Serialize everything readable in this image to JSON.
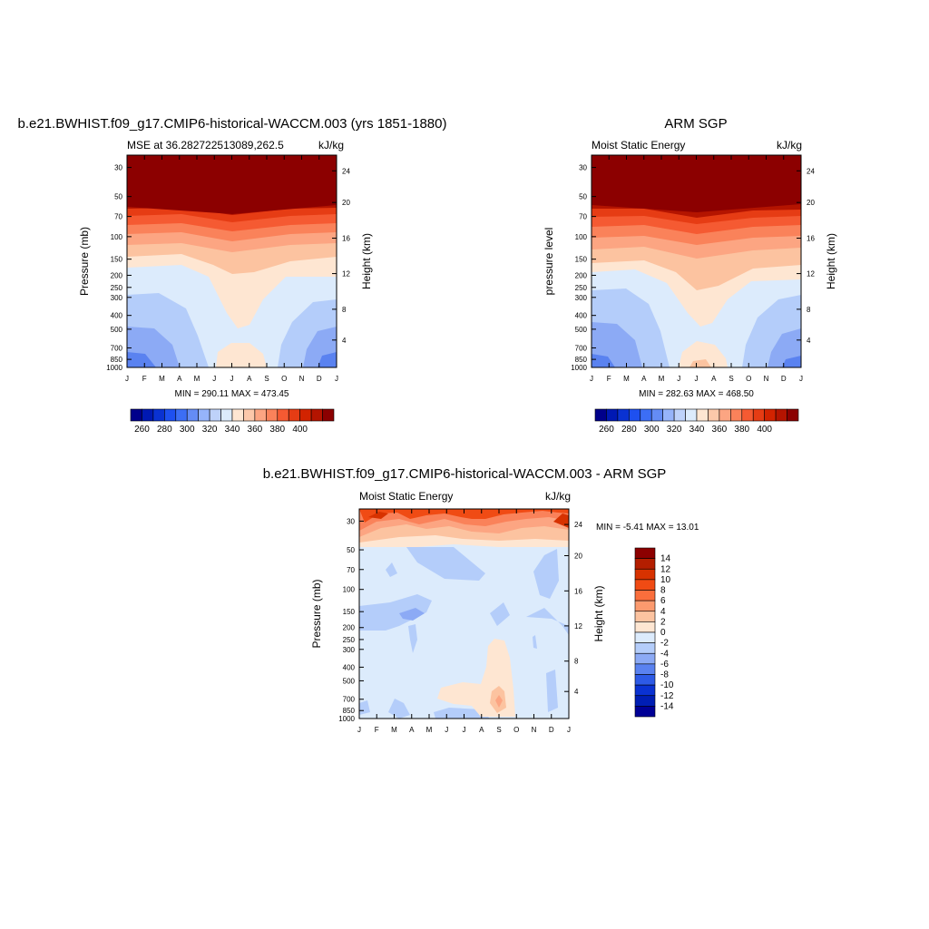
{
  "chart_data": [
    {
      "type": "contour",
      "title": "b.e21.BWHIST.f09_g17.CMIP6-historical-WACCM.003 (yrs 1851-1880)",
      "subtitle_left": "MSE at 36.282722513089,262.5",
      "subtitle_right": "kJ/kg",
      "ylabel_left": "Pressure (mb)",
      "ylabel_right": "Height (km)",
      "months": [
        "J",
        "F",
        "M",
        "A",
        "M",
        "J",
        "J",
        "A",
        "S",
        "O",
        "N",
        "D",
        "J"
      ],
      "pressure_ticks": [
        "30",
        "50",
        "70",
        "100",
        "150",
        "200",
        "250",
        "300",
        "400",
        "500",
        "700",
        "850",
        "1000"
      ],
      "height_ticks": [
        "24",
        "20",
        "16",
        "12",
        "8",
        "4"
      ],
      "stats": "MIN = 290.11 MAX = 473.45",
      "colorbar_labels": [
        "260",
        "280",
        "300",
        "320",
        "340",
        "360",
        "380",
        "400"
      ],
      "colorbar_colors": [
        "#00008b",
        "#0019b3",
        "#0a32d2",
        "#1e50f0",
        "#3c6ef5",
        "#648cf5",
        "#96b4fa",
        "#bed2fa",
        "#dcebfc",
        "#fee6d2",
        "#fcc8aa",
        "#fca582",
        "#fa825a",
        "#f55a32",
        "#e63c14",
        "#d22300",
        "#b41400",
        "#8c0000"
      ],
      "min": 290.11,
      "max": 473.45
    },
    {
      "type": "contour",
      "title": "ARM SGP",
      "subtitle_left": "Moist Static Energy",
      "subtitle_right": "kJ/kg",
      "ylabel_left": "pressure level",
      "ylabel_right": "Height (km)",
      "months": [
        "J",
        "F",
        "M",
        "A",
        "M",
        "J",
        "J",
        "A",
        "S",
        "O",
        "N",
        "D",
        "J"
      ],
      "pressure_ticks": [
        "30",
        "50",
        "70",
        "100",
        "150",
        "200",
        "250",
        "300",
        "400",
        "500",
        "700",
        "850",
        "1000"
      ],
      "height_ticks": [
        "24",
        "20",
        "16",
        "12",
        "8",
        "4"
      ],
      "stats": "MIN = 282.63 MAX = 468.50",
      "colorbar_labels": [
        "260",
        "280",
        "300",
        "320",
        "340",
        "360",
        "380",
        "400"
      ],
      "colorbar_colors": [
        "#00008b",
        "#0019b3",
        "#0a32d2",
        "#1e50f0",
        "#3c6ef5",
        "#648cf5",
        "#96b4fa",
        "#bed2fa",
        "#dcebfc",
        "#fee6d2",
        "#fcc8aa",
        "#fca582",
        "#fa825a",
        "#f55a32",
        "#e63c14",
        "#d22300",
        "#b41400",
        "#8c0000"
      ],
      "min": 282.63,
      "max": 468.5
    },
    {
      "type": "contour",
      "title": "b.e21.BWHIST.f09_g17.CMIP6-historical-WACCM.003 - ARM SGP",
      "subtitle_left": "Moist Static Energy",
      "subtitle_right": "kJ/kg",
      "ylabel_left": "Pressure (mb)",
      "ylabel_right": "Height (km)",
      "months": [
        "J",
        "F",
        "M",
        "A",
        "M",
        "J",
        "J",
        "A",
        "S",
        "O",
        "N",
        "D",
        "J"
      ],
      "pressure_ticks": [
        "30",
        "50",
        "70",
        "100",
        "150",
        "200",
        "250",
        "300",
        "400",
        "500",
        "700",
        "850",
        "1000"
      ],
      "height_ticks": [
        "24",
        "20",
        "16",
        "12",
        "8",
        "4"
      ],
      "stats": "MIN =  -5.41 MAX =  13.01",
      "colorbar_labels": [
        "14",
        "12",
        "10",
        "8",
        "6",
        "4",
        "2",
        "0",
        "-2",
        "-4",
        "-6",
        "-8",
        "-10",
        "-12",
        "-14"
      ],
      "colorbar_colors": [
        "#8c0000",
        "#b41e00",
        "#d73200",
        "#f04b14",
        "#fa6e3c",
        "#fc9a6e",
        "#fcc3a0",
        "#fee6d2",
        "#dcebfc",
        "#b4cdfa",
        "#8caaf5",
        "#5a82f0",
        "#2d5ae6",
        "#0a32d2",
        "#001eb4",
        "#000096"
      ],
      "min": -5.41,
      "max": 13.01
    }
  ]
}
